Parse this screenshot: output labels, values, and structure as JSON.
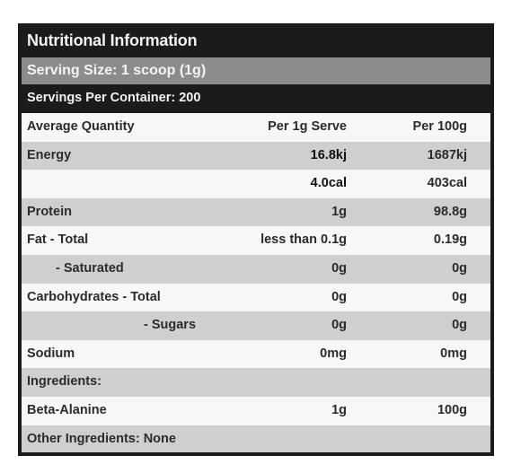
{
  "title": "Nutritional Information",
  "serving_size": "Serving Size: 1 scoop (1g)",
  "servings_per_container": "Servings Per Container: 200",
  "header": {
    "label": "Average Quantity",
    "per_serve": "Per 1g Serve",
    "per_100": "Per 100g"
  },
  "rows": [
    {
      "label": "Energy",
      "per_serve": "16.8kj",
      "per_100": "1687kj"
    },
    {
      "label": "",
      "per_serve": "4.0cal",
      "per_100": "403cal"
    },
    {
      "label": "Protein",
      "per_serve": "1g",
      "per_100": "98.8g"
    },
    {
      "label": "Fat - Total",
      "per_serve": "less than 0.1g",
      "per_100": "0.19g"
    },
    {
      "label": "- Saturated",
      "per_serve": "0g",
      "per_100": "0g"
    },
    {
      "label": "Carbohydrates - Total",
      "per_serve": "0g",
      "per_100": "0g"
    },
    {
      "label": "- Sugars",
      "per_serve": "0g",
      "per_100": "0g"
    },
    {
      "label": "Sodium",
      "per_serve": "0mg",
      "per_100": "0mg"
    }
  ],
  "ingredients_label": "Ingredients:",
  "ingredient": {
    "label": "Beta-Alanine",
    "per_serve": "1g",
    "per_100": "100g"
  },
  "other_ingredients": "Other Ingredients: None",
  "colors": {
    "dark": "#1b1b1b",
    "mid_grey": "#8c8c8c",
    "light_grey": "#cfcfcf",
    "white": "#f7f7f7"
  }
}
